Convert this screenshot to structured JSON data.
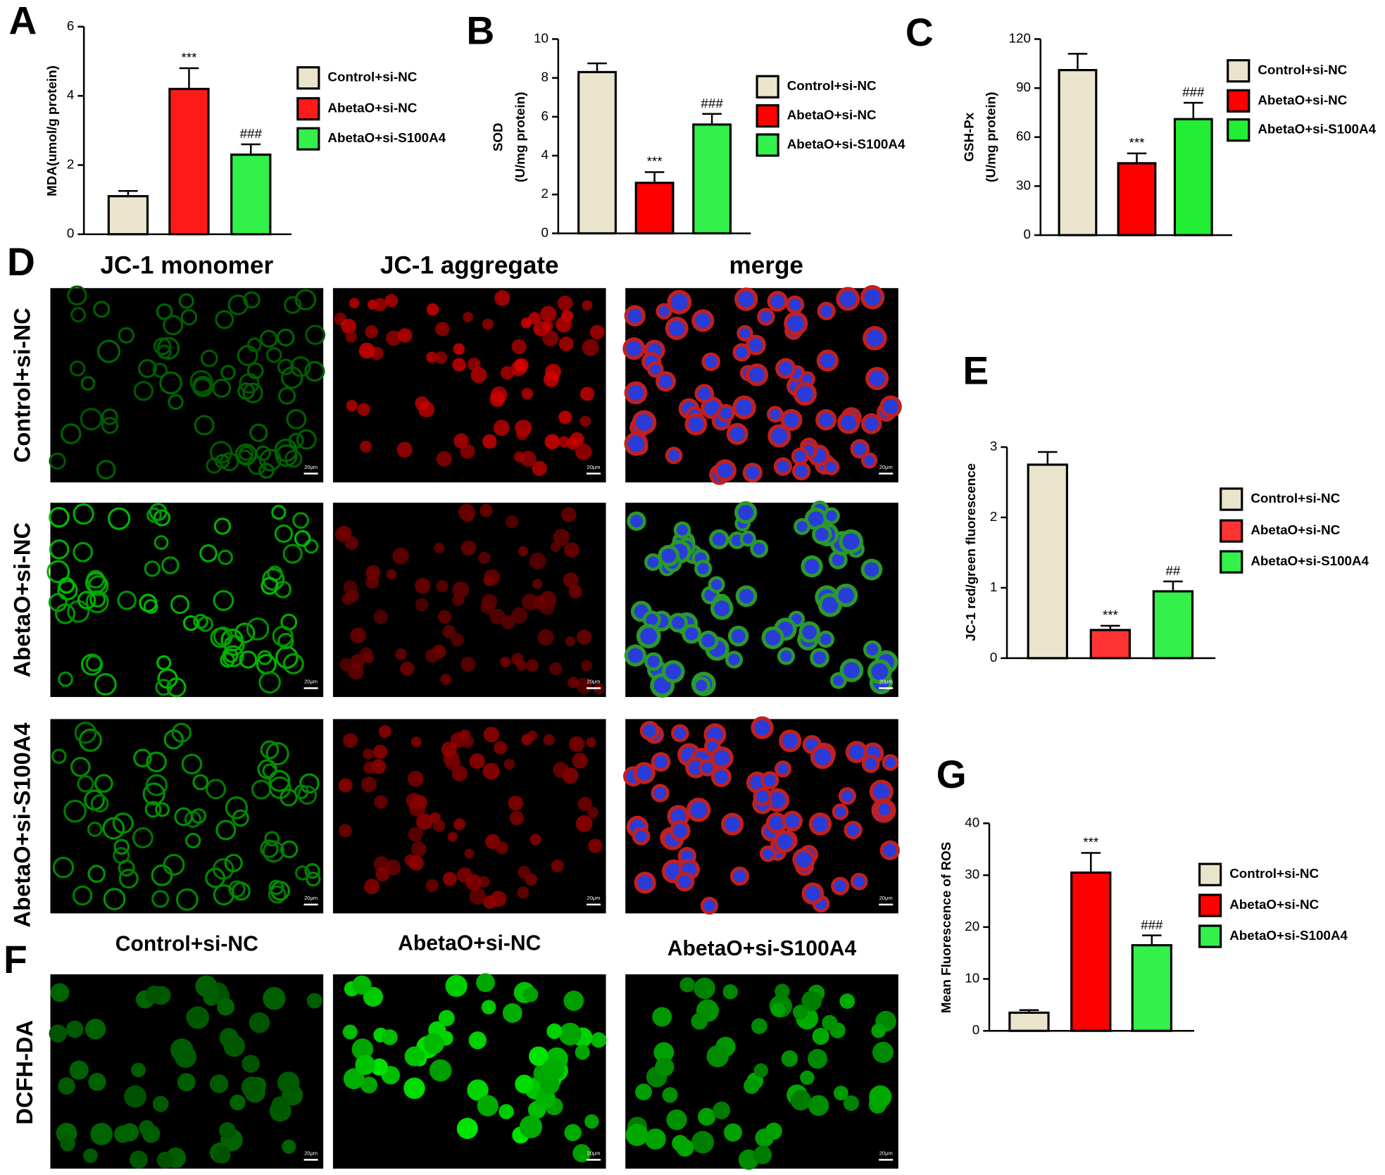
{
  "chart_data": [
    {
      "type": "bar",
      "panel": "A",
      "ylabel": [
        "MDA(umol/g protein)"
      ],
      "categories": [
        "Control+si-NC",
        "AbetaO+si-NC",
        "AbetaO+si-S100A4"
      ],
      "values": [
        1.1,
        4.2,
        2.3
      ],
      "errors": [
        0.15,
        0.6,
        0.3
      ],
      "colors": [
        "#ebe4cd",
        "#ff1a1a",
        "#33f04a"
      ],
      "annotations": [
        null,
        "***",
        "###"
      ],
      "ylim": [
        0,
        6
      ],
      "yticks": [
        0,
        2,
        4,
        6
      ]
    },
    {
      "type": "bar",
      "panel": "B",
      "ylabel": [
        "SOD",
        "(U/mg protein)"
      ],
      "categories": [
        "Control+si-NC",
        "AbetaO+si-NC",
        "AbetaO+si-S100A4"
      ],
      "values": [
        8.3,
        2.6,
        5.6
      ],
      "errors": [
        0.45,
        0.55,
        0.55
      ],
      "colors": [
        "#ebe4cd",
        "#ff0000",
        "#33f04a"
      ],
      "annotations": [
        null,
        "***",
        "###"
      ],
      "ylim": [
        0,
        10
      ],
      "yticks": [
        0,
        2,
        4,
        6,
        8,
        10
      ]
    },
    {
      "type": "bar",
      "panel": "C",
      "ylabel": [
        "GSH-Px",
        "(U/mg protein)"
      ],
      "categories": [
        "Control+si-NC",
        "AbetaO+si-NC",
        "AbetaO+si-S100A4"
      ],
      "values": [
        101,
        44,
        71
      ],
      "errors": [
        10,
        6,
        10
      ],
      "colors": [
        "#ebe4cd",
        "#ff0000",
        "#22ee33"
      ],
      "annotations": [
        null,
        "***",
        "###"
      ],
      "ylim": [
        0,
        120
      ],
      "yticks": [
        0,
        30,
        60,
        90,
        120
      ]
    },
    {
      "type": "bar",
      "panel": "E",
      "ylabel": [
        "JC-1 red/green fluorescence"
      ],
      "categories": [
        "Control+si-NC",
        "AbetaO+si-NC",
        "AbetaO+si-S100A4"
      ],
      "values": [
        2.75,
        0.4,
        0.95
      ],
      "errors": [
        0.18,
        0.06,
        0.14
      ],
      "colors": [
        "#ebe4cd",
        "#ff3333",
        "#33f04a"
      ],
      "annotations": [
        null,
        "***",
        "##"
      ],
      "ylim": [
        0,
        3
      ],
      "yticks": [
        0,
        1,
        2,
        3
      ]
    },
    {
      "type": "bar",
      "panel": "G",
      "ylabel": [
        "Mean Fluorescence of ROS"
      ],
      "categories": [
        "Control+si-NC",
        "AbetaO+si-NC",
        "AbetaO+si-S100A4"
      ],
      "values": [
        3.5,
        30.5,
        16.5
      ],
      "errors": [
        0.5,
        3.8,
        1.9
      ],
      "colors": [
        "#ebe4cd",
        "#ff0000",
        "#33f04a"
      ],
      "annotations": [
        null,
        "***",
        "###"
      ],
      "ylim": [
        0,
        40
      ],
      "yticks": [
        0,
        10,
        20,
        30,
        40
      ]
    }
  ],
  "figure": {
    "jc1": {
      "panel": "D",
      "columns": [
        "JC-1 monomer",
        "JC-1 aggregate",
        "merge"
      ],
      "rows": [
        "Control+si-NC",
        "AbetaO+si-NC",
        "AbetaO+si-S100A4"
      ]
    },
    "dcfh": {
      "panel": "F",
      "columns": [
        "Control+si-NC",
        "AbetaO+si-NC",
        "AbetaO+si-S100A4"
      ],
      "row": "DCFH-DA"
    },
    "scale_bar": "20μm"
  }
}
